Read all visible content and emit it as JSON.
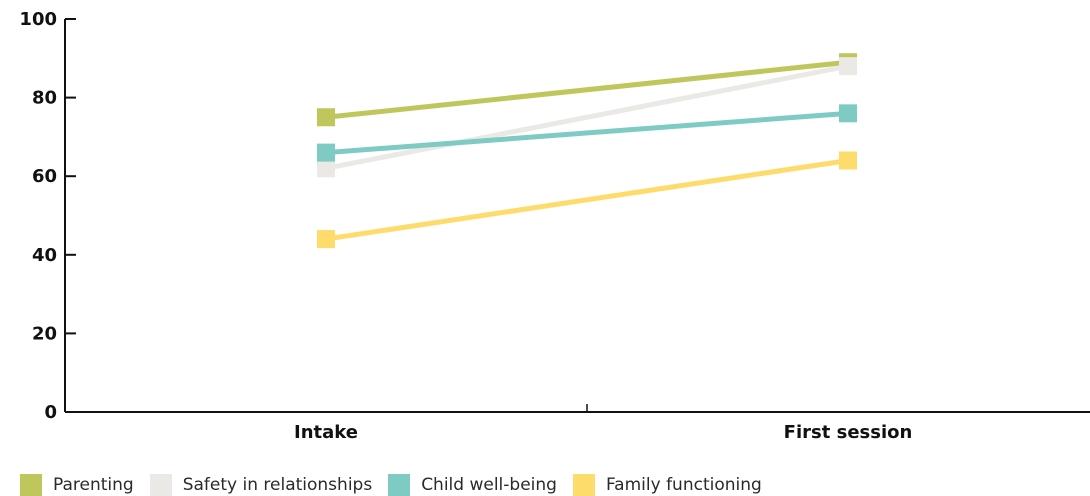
{
  "chart_data": {
    "type": "line",
    "categories": [
      "Intake",
      "First session"
    ],
    "ylim": [
      0,
      100
    ],
    "yticks": [
      0,
      20,
      40,
      60,
      80,
      100
    ],
    "series": [
      {
        "name": "Parenting",
        "values": [
          75,
          89
        ],
        "color": "#bfc65c"
      },
      {
        "name": "Safety in relationships",
        "values": [
          62,
          88
        ],
        "color": "#ebe9e5"
      },
      {
        "name": "Child well-being",
        "values": [
          66,
          76
        ],
        "color": "#7ecbc4"
      },
      {
        "name": "Family functioning",
        "values": [
          44,
          64
        ],
        "color": "#fddc6b"
      }
    ],
    "legend_position": "bottom",
    "grid": false
  }
}
